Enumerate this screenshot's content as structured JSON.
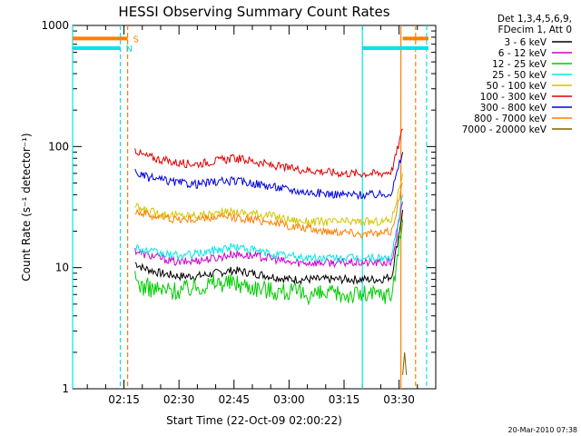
{
  "chart_data": {
    "type": "line",
    "title": "HESSI Observing Summary Count Rates",
    "xlabel": "Start Time (22-Oct-09 02:00:22)",
    "ylabel": "Count Rate (s⁻¹ detector⁻¹)",
    "y_scale": "log",
    "ylim": [
      1,
      1000
    ],
    "y_ticks": [
      "1",
      "10",
      "100",
      "1000"
    ],
    "x_ticks": [
      "02:15",
      "02:30",
      "02:45",
      "03:00",
      "03:15",
      "03:30"
    ],
    "x_tick_minutes": [
      15,
      30,
      45,
      60,
      75,
      90
    ],
    "xlim_minutes": [
      1,
      100
    ],
    "legend": {
      "header": [
        "Det 1,3,4,5,6,9,",
        "FDecim 1, Att 0"
      ],
      "position": "outside-right"
    },
    "series": [
      {
        "name": "3 - 6 keV",
        "color": "#000000",
        "x": [
          18,
          20,
          25,
          30,
          35,
          40,
          45,
          50,
          55,
          60,
          65,
          70,
          75,
          80,
          85,
          88,
          91
        ],
        "y": [
          11,
          10,
          9,
          8.5,
          8.5,
          9,
          9.5,
          9,
          8.5,
          8,
          8,
          8,
          8,
          8,
          8,
          8.5,
          30
        ]
      },
      {
        "name": "6 - 12 keV",
        "color": "#cc00cc",
        "x": [
          18,
          20,
          25,
          30,
          35,
          40,
          45,
          50,
          55,
          60,
          65,
          70,
          75,
          80,
          85,
          88,
          91
        ],
        "y": [
          14,
          13,
          12,
          11,
          11.5,
          12,
          13,
          12.5,
          12,
          11,
          11,
          11,
          11,
          11,
          11,
          11,
          35
        ]
      },
      {
        "name": "12 - 25 keV",
        "color": "#00cc00",
        "x": [
          18,
          20,
          25,
          30,
          35,
          40,
          45,
          50,
          55,
          60,
          65,
          70,
          75,
          80,
          85,
          88,
          91
        ],
        "y": [
          8,
          7,
          6.5,
          6.5,
          7,
          7.5,
          7.5,
          7,
          6.5,
          6.3,
          6,
          6,
          6,
          6,
          6,
          6,
          25
        ]
      },
      {
        "name": "25 - 50 keV",
        "color": "#00e5e5",
        "x": [
          18,
          20,
          25,
          30,
          35,
          40,
          45,
          50,
          55,
          60,
          65,
          70,
          75,
          80,
          85,
          88,
          91
        ],
        "y": [
          15,
          14,
          13,
          12.5,
          13,
          14,
          15,
          14,
          13,
          12.5,
          12,
          12,
          12,
          12,
          12,
          12,
          40
        ]
      },
      {
        "name": "50 - 100 keV",
        "color": "#d4c400",
        "x": [
          18,
          20,
          25,
          30,
          35,
          40,
          45,
          50,
          55,
          60,
          65,
          70,
          75,
          80,
          85,
          88,
          91
        ],
        "y": [
          32,
          30,
          28,
          27,
          27,
          28,
          29,
          28,
          27,
          25,
          24,
          24,
          24,
          24,
          24,
          25,
          60
        ]
      },
      {
        "name": "100 - 300 keV",
        "color": "#e00000",
        "x": [
          18,
          20,
          25,
          30,
          35,
          40,
          45,
          50,
          55,
          60,
          65,
          70,
          75,
          80,
          85,
          88,
          91
        ],
        "y": [
          95,
          85,
          78,
          73,
          72,
          76,
          80,
          76,
          70,
          66,
          64,
          62,
          60,
          60,
          60,
          63,
          140
        ]
      },
      {
        "name": "300 - 800 keV",
        "color": "#0000dd",
        "x": [
          18,
          20,
          25,
          30,
          35,
          40,
          45,
          50,
          55,
          60,
          65,
          70,
          75,
          80,
          85,
          88,
          91
        ],
        "y": [
          62,
          57,
          53,
          50,
          49,
          51,
          52,
          50,
          47,
          44,
          42,
          41,
          40,
          40,
          40,
          42,
          90
        ]
      },
      {
        "name": "800 - 7000 keV",
        "color": "#ff7f00",
        "x": [
          18,
          20,
          25,
          30,
          35,
          40,
          45,
          50,
          55,
          60,
          65,
          70,
          75,
          80,
          85,
          88,
          91
        ],
        "y": [
          30,
          28,
          26,
          25,
          25,
          26,
          26,
          25,
          24,
          22,
          21,
          20,
          20,
          19,
          19,
          20,
          50
        ]
      },
      {
        "name": "7000 - 20000 keV",
        "color": "#806000",
        "x": [
          91,
          91.5,
          92
        ],
        "y": [
          1.3,
          2,
          1.3
        ]
      }
    ],
    "flag_markers": [
      {
        "label": "S",
        "color": "#ff7f00",
        "x_start": 1,
        "x_end": 16,
        "x_start2": 91,
        "x_end2": 98,
        "y": 780
      },
      {
        "label": "N",
        "color": "#00e5e5",
        "x_start": 1,
        "x_end": 14,
        "x_start2": 80,
        "x_end2": 98,
        "y": 650
      }
    ],
    "vertical_markers": [
      {
        "x": 1,
        "color": "#00e5e5",
        "dashed": false
      },
      {
        "x": 14,
        "color": "#00e5e5",
        "dashed": true
      },
      {
        "x": 16,
        "color": "#ff7f00",
        "dashed": true
      },
      {
        "x": 80,
        "color": "#00e5e5",
        "dashed": false
      },
      {
        "x": 90.5,
        "color": "#ff7f00",
        "dashed": false
      },
      {
        "x": 94.5,
        "color": "#ff7f00",
        "dashed": true
      },
      {
        "x": 97.5,
        "color": "#00e5e5",
        "dashed": true
      }
    ]
  },
  "footer": {
    "date_stamp": "20-Mar-2010 07:38"
  }
}
